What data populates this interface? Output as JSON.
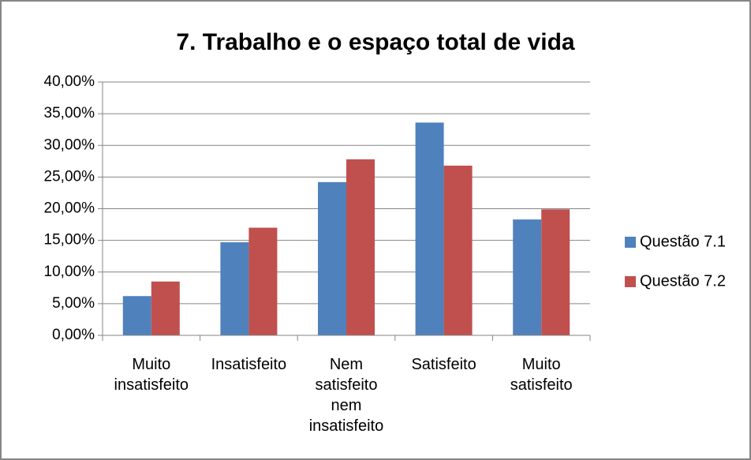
{
  "chart_data": {
    "type": "bar",
    "title": "7. Trabalho e o espaço total de vida",
    "categories": [
      "Muito insatisfeito",
      "Insatisfeito",
      "Nem satisfeito nem insatisfeito",
      "Satisfeito",
      "Muito satisfeito"
    ],
    "series": [
      {
        "name": "Questão 7.1",
        "color": "#4f81bd",
        "values": [
          6.2,
          14.7,
          24.2,
          33.6,
          18.3
        ]
      },
      {
        "name": "Questão 7.2",
        "color": "#c0504d",
        "values": [
          8.5,
          17.0,
          27.8,
          26.8,
          19.9
        ]
      }
    ],
    "ylim": [
      0,
      40
    ],
    "yticks": [
      {
        "value": 0,
        "label": "0,00%"
      },
      {
        "value": 5,
        "label": "5,00%"
      },
      {
        "value": 10,
        "label": "10,00%"
      },
      {
        "value": 15,
        "label": "15,00%"
      },
      {
        "value": 20,
        "label": "20,00%"
      },
      {
        "value": 25,
        "label": "25,00%"
      },
      {
        "value": 30,
        "label": "30,00%"
      },
      {
        "value": 35,
        "label": "35,00%"
      },
      {
        "value": 40,
        "label": "40,00%"
      }
    ],
    "grid": true,
    "legend": "right"
  }
}
